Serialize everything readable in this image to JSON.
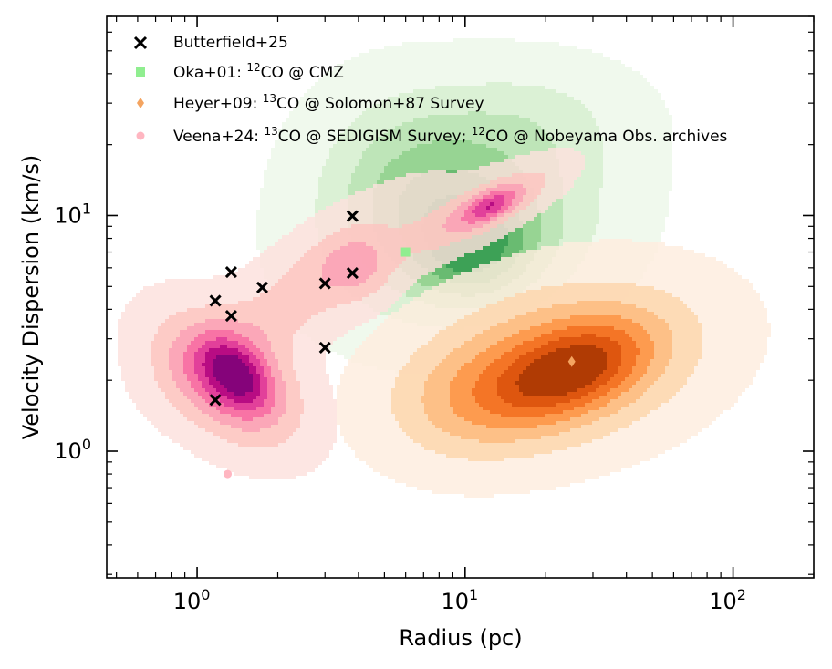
{
  "chart_data": {
    "type": "scatter",
    "title": "",
    "xlabel": "Radius (pc)",
    "ylabel": "Velocity Dispersion (km/s)",
    "xscale": "log",
    "yscale": "log",
    "xlim": [
      0.46,
      200
    ],
    "ylim": [
      0.29,
      70
    ],
    "x_ticks": [
      {
        "value": 1,
        "base": "10",
        "exp": "0"
      },
      {
        "value": 10,
        "base": "10",
        "exp": "1"
      },
      {
        "value": 100,
        "base": "10",
        "exp": "2"
      }
    ],
    "y_ticks": [
      {
        "value": 1,
        "base": "10",
        "exp": "0"
      },
      {
        "value": 10,
        "base": "10",
        "exp": "1"
      }
    ],
    "legend_position": "upper-left",
    "series": [
      {
        "name": "Butterfield+25",
        "marker": "x",
        "color": "#000000",
        "points": [
          [
            1.17,
            1.65
          ],
          [
            1.34,
            3.75
          ],
          [
            1.17,
            4.35
          ],
          [
            1.34,
            5.75
          ],
          [
            1.75,
            4.95
          ],
          [
            3.0,
            5.15
          ],
          [
            3.0,
            2.75
          ],
          [
            3.8,
            5.7
          ],
          [
            3.8,
            9.95
          ]
        ]
      },
      {
        "name_parts": [
          "Oka+01: ",
          "12",
          "CO @ CMZ"
        ],
        "marker": "square",
        "color": "#90ee90",
        "points": [
          [
            6.0,
            7.0
          ]
        ],
        "density_colormap": "Greens"
      },
      {
        "name_parts": [
          "Heyer+09: ",
          "13",
          "CO @ Solomon+87 Survey"
        ],
        "marker": "diamond",
        "color": "#f4a460",
        "points": [
          [
            25.0,
            2.4
          ]
        ],
        "density_colormap": "Oranges"
      },
      {
        "name_parts": [
          "Veena+24: ",
          "13",
          "CO @ SEDIGISM Survey; ",
          "12",
          "CO @ Nobeyama Obs. archives"
        ],
        "marker": "circle",
        "color": "#ffb6c1",
        "points": [
          [
            1.3,
            0.8
          ]
        ],
        "density_colormap": "RdPu"
      }
    ],
    "density_regions": [
      {
        "name": "green",
        "colors": [
          "#edf8e9",
          "#d6efd0",
          "#b7e2b1",
          "#8fd08b",
          "#5fb66a",
          "#339b51"
        ],
        "components": [
          {
            "cx": 10.0,
            "cy": 9.0,
            "sx": 0.33,
            "sy": 0.26,
            "rot": 0.35,
            "w": 1.0
          },
          {
            "cx": 6.0,
            "cy": 16.0,
            "sx": 0.23,
            "sy": 0.25,
            "rot": 0.1,
            "w": 0.45
          },
          {
            "cx": 18.0,
            "cy": 26.0,
            "sx": 0.26,
            "sy": 0.17,
            "rot": 0.0,
            "w": 0.3
          },
          {
            "cx": 11.0,
            "cy": 7.0,
            "sx": 0.14,
            "sy": 0.14,
            "rot": 0.8,
            "w": 0.6
          }
        ]
      },
      {
        "name": "orange",
        "colors": [
          "#feedde",
          "#fdd5ac",
          "#fdb97d",
          "#fd9243",
          "#f16c1d",
          "#d94f0b",
          "#a63603"
        ],
        "components": [
          {
            "cx": 22.0,
            "cy": 2.3,
            "sx": 0.36,
            "sy": 0.22,
            "rot": 0.3,
            "w": 1.0
          },
          {
            "cx": 25.0,
            "cy": 2.2,
            "sx": 0.2,
            "sy": 0.11,
            "rot": 0.45,
            "w": 0.9
          },
          {
            "cx": 10.0,
            "cy": 1.6,
            "sx": 0.2,
            "sy": 0.16,
            "rot": 0.25,
            "w": 0.3
          }
        ]
      },
      {
        "name": "pink",
        "colors": [
          "#fde0dd",
          "#fcc5c0",
          "#fa9fb5",
          "#f768a1",
          "#dd3497",
          "#ae017e",
          "#7a0177"
        ],
        "components": [
          {
            "cx": 1.3,
            "cy": 2.0,
            "sx": 0.14,
            "sy": 0.22,
            "rot": 0.75,
            "w": 1.0
          },
          {
            "cx": 1.4,
            "cy": 2.1,
            "sx": 0.07,
            "sy": 0.11,
            "rot": 0.6,
            "w": 0.8
          },
          {
            "cx": 2.8,
            "cy": 5.2,
            "sx": 0.36,
            "sy": 0.12,
            "rot": 0.7,
            "w": 0.45
          },
          {
            "cx": 3.9,
            "cy": 6.0,
            "sx": 0.09,
            "sy": 0.1,
            "rot": 0.4,
            "w": 0.35
          },
          {
            "cx": 12.0,
            "cy": 10.8,
            "sx": 0.2,
            "sy": 0.065,
            "rot": 0.55,
            "w": 0.7
          },
          {
            "cx": 12.5,
            "cy": 11.0,
            "sx": 0.07,
            "sy": 0.035,
            "rot": 0.55,
            "w": 0.6
          }
        ]
      }
    ],
    "legend": {
      "butterfield": "Butterfield+25",
      "oka_a": "Oka+01: ",
      "oka_sup": "12",
      "oka_b": "CO @ CMZ",
      "heyer_a": "Heyer+09: ",
      "heyer_sup": "13",
      "heyer_b": "CO @ Solomon+87 Survey",
      "veena_a": "Veena+24: ",
      "veena_sup1": "13",
      "veena_b": "CO @ SEDIGISM Survey; ",
      "veena_sup2": "12",
      "veena_c": "CO @ Nobeyama Obs. archives"
    }
  }
}
